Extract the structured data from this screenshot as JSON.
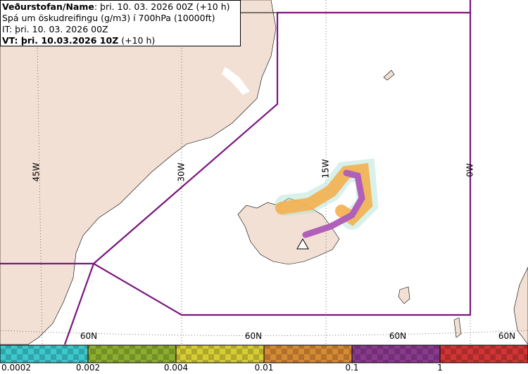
{
  "header": {
    "lines": [
      {
        "bold": "Veðurstofan/Name",
        "text": ": þri. 10. 03. 2026 00Z (+10 h)"
      },
      {
        "text": "Spá um öskudreifingu (g/m3) í 700hPa (10000ft)"
      },
      {
        "text": "IT: þri. 10. 03. 2026 00Z"
      },
      {
        "bold": "VT: þri. 10.03.2026 10Z",
        "text": " (+10 h)"
      }
    ]
  },
  "map": {
    "meridian_labels": [
      "45W",
      "30W",
      "15W",
      "0W"
    ],
    "parallel_labels": [
      "60N",
      "60N",
      "60N",
      "60N"
    ]
  },
  "colorbar": {
    "bins": [
      {
        "label": "0.0002",
        "color": "#3cc8cc"
      },
      {
        "label": "0.002",
        "color": "#8cae2e"
      },
      {
        "label": "0.004",
        "color": "#d6cc34"
      },
      {
        "label": "0.01",
        "color": "#d68a34"
      },
      {
        "label": "0.1",
        "color": "#8a3a8e"
      },
      {
        "label": "1",
        "color": "#d03434"
      }
    ]
  }
}
